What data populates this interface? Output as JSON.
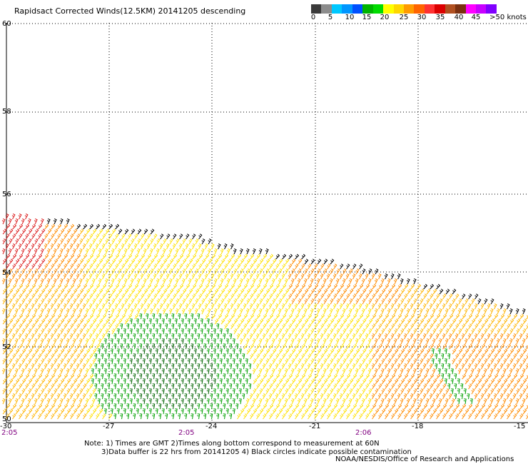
{
  "title": "Rapidsact Corrected Winds(12.5KM) 20141205 descending",
  "colorbar": {
    "colors": [
      "#3a3a3a",
      "#8c8c8c",
      "#00c8ff",
      "#0096ff",
      "#0050ff",
      "#00b400",
      "#00dc00",
      "#ffff00",
      "#ffd700",
      "#ff9b00",
      "#ff6400",
      "#ff3232",
      "#dc0000",
      "#b05020",
      "#7a3010",
      "#ff00ff",
      "#c800ff",
      "#8000ff"
    ],
    "labels": [
      "0",
      "5",
      "10",
      "15",
      "20",
      "25",
      "30",
      "35",
      "40",
      "45",
      ">50 knots"
    ]
  },
  "map": {
    "lat_labels": [
      "60",
      "58",
      "56",
      "54",
      "52",
      "50"
    ],
    "lon_labels": [
      "-30",
      "-27",
      "-24",
      "-21",
      "-18",
      "-15"
    ],
    "time_labels": [
      "2:05",
      "2:05",
      "2:06"
    ],
    "wind_colors": {
      "contaminated": "#000000",
      "high": "#dc2020",
      "orange": "#ff8c00",
      "amber": "#ffb400",
      "yellow": "#ffe000",
      "green": "#00a000",
      "darkgreen": "#006400"
    }
  },
  "notes": {
    "line1": "Note: 1) Times are GMT 2)Times along bottom correspond to measurement at 60N",
    "line2": "3)Data buffer is 22 hrs from 20141205 4) Black circles indicate possible contamination"
  },
  "credit": "NOAA/NESDIS/Office of Research and Applications"
}
